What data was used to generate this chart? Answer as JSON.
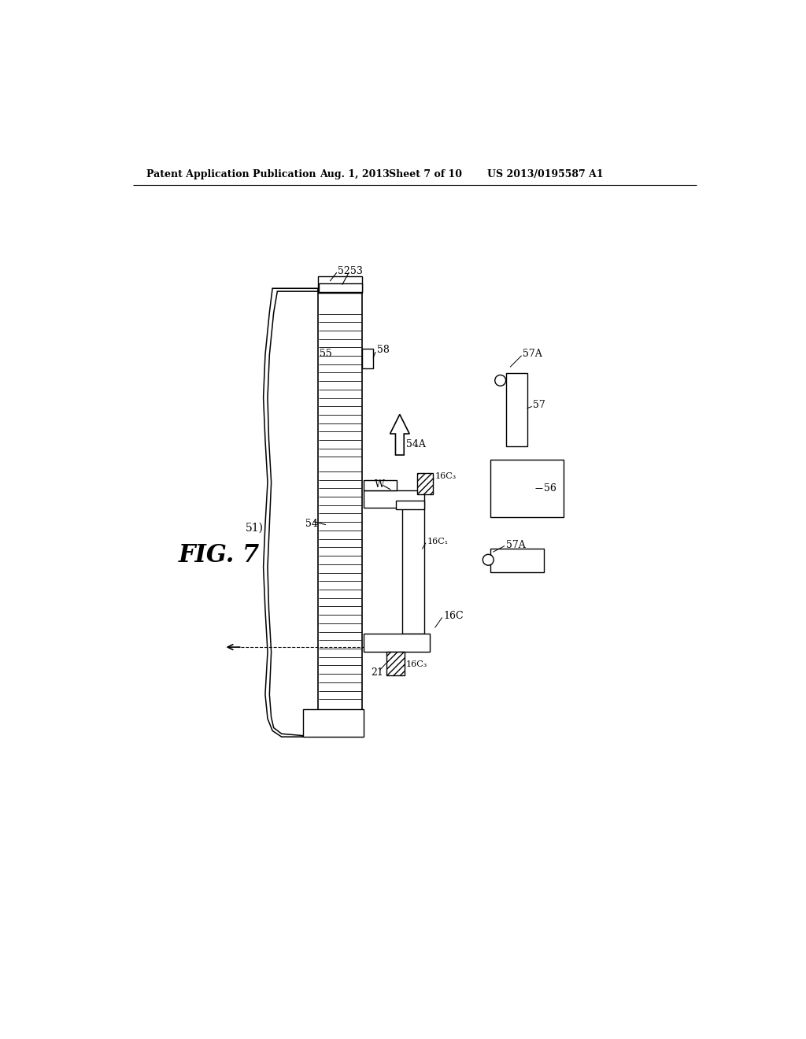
{
  "bg_color": "#ffffff",
  "lc": "#000000",
  "header_left": "Patent Application Publication",
  "header_date": "Aug. 1, 2013",
  "header_sheet": "Sheet 7 of 10",
  "header_patent": "US 2013/0195587 A1",
  "fig_label": "FIG. 7"
}
